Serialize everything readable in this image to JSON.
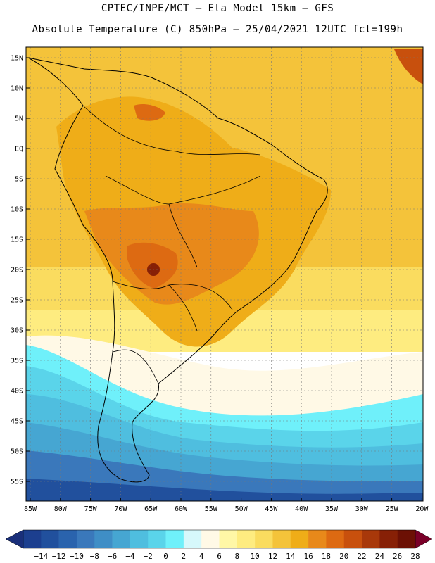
{
  "header": {
    "line1": "CPTEC/INPE/MCT –  Eta Model 15km – GFS",
    "line2": "Absolute Temperature (C) 850hPa – 25/04/2021 12UTC fct=199h"
  },
  "axes": {
    "lat_labels": [
      "15N",
      "10N",
      "5N",
      "EQ",
      "5S",
      "10S",
      "15S",
      "20S",
      "25S",
      "30S",
      "35S",
      "40S",
      "45S",
      "50S",
      "55S"
    ],
    "lon_labels": [
      "85W",
      "80W",
      "75W",
      "70W",
      "65W",
      "60W",
      "55W",
      "50W",
      "45W",
      "40W",
      "35W",
      "30W",
      "25W",
      "20W"
    ]
  },
  "colorbar": {
    "labels": [
      "-14",
      "-12",
      "-10",
      "-8",
      "-6",
      "-4",
      "-2",
      "0",
      "2",
      "4",
      "6",
      "8",
      "10",
      "12",
      "14",
      "16",
      "18",
      "20",
      "22",
      "24",
      "26",
      "28"
    ],
    "colors": [
      "#1c3f8f",
      "#21509d",
      "#2a63ad",
      "#3a78bb",
      "#3f8ec6",
      "#46a6d2",
      "#4fbedf",
      "#5ad4ea",
      "#6ff0fa",
      "#d6f8fb",
      "#fff9e6",
      "#fff7a6",
      "#feec80",
      "#fadc5f",
      "#f4c33a",
      "#efad18",
      "#e8891a",
      "#dd6a12",
      "#c8500d",
      "#a8380a",
      "#872006",
      "#6c1004"
    ],
    "left_arrow_color": "#1a2f7a",
    "right_arrow_color": "#7a0028"
  }
}
